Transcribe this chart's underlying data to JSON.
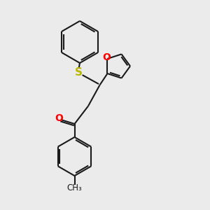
{
  "bg_color": "#ebebeb",
  "line_color": "#1a1a1a",
  "S_color": "#b8b800",
  "O_color": "#ff0000",
  "bond_lw": 1.5,
  "font_size": 10,
  "fig_size": [
    3.0,
    3.0
  ],
  "dpi": 100,
  "xlim": [
    0,
    10
  ],
  "ylim": [
    0,
    10
  ]
}
